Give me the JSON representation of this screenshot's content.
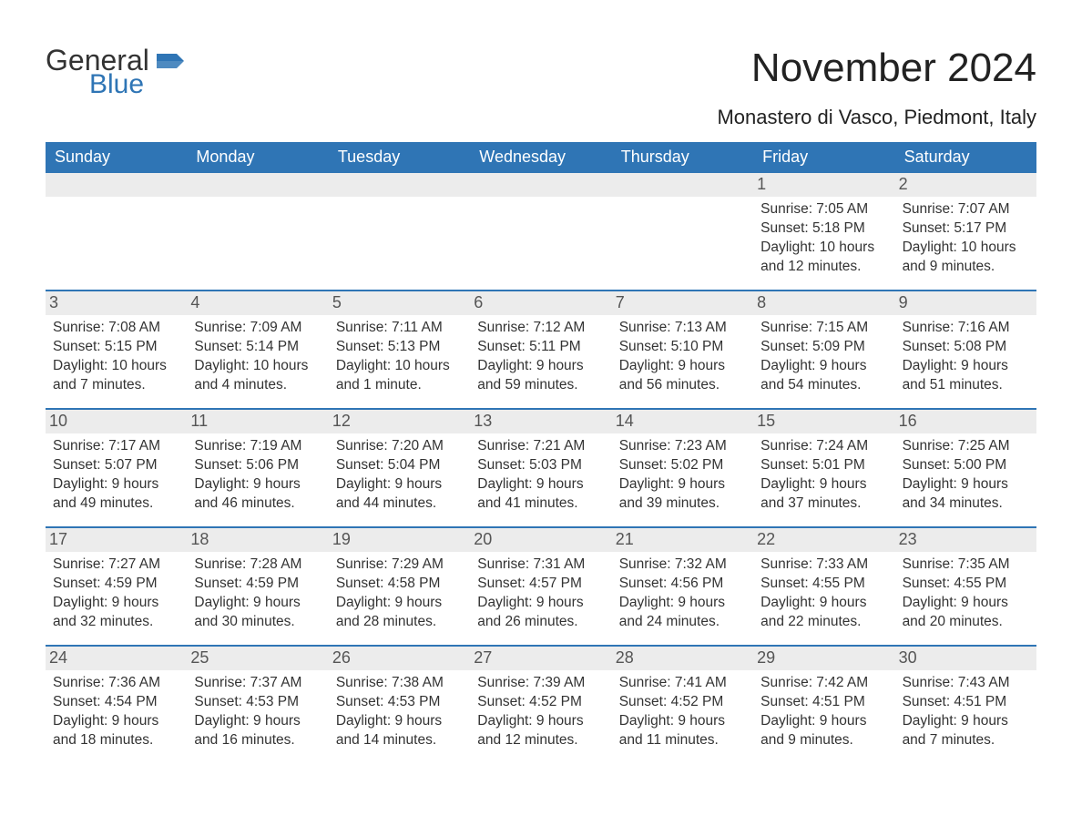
{
  "logo": {
    "line1": "General",
    "line2": "Blue",
    "accent_color": "#2f75b5"
  },
  "title": "November 2024",
  "location": "Monastero di Vasco, Piedmont, Italy",
  "colors": {
    "header_bg": "#2f75b5",
    "header_text": "#ffffff",
    "daynum_bg": "#ececec",
    "text": "#333333",
    "page_bg": "#ffffff"
  },
  "days_of_week": [
    "Sunday",
    "Monday",
    "Tuesday",
    "Wednesday",
    "Thursday",
    "Friday",
    "Saturday"
  ],
  "weeks": [
    [
      {
        "n": null
      },
      {
        "n": null
      },
      {
        "n": null
      },
      {
        "n": null
      },
      {
        "n": null
      },
      {
        "n": "1",
        "sunrise": "7:05 AM",
        "sunset": "5:18 PM",
        "daylight": "10 hours and 12 minutes."
      },
      {
        "n": "2",
        "sunrise": "7:07 AM",
        "sunset": "5:17 PM",
        "daylight": "10 hours and 9 minutes."
      }
    ],
    [
      {
        "n": "3",
        "sunrise": "7:08 AM",
        "sunset": "5:15 PM",
        "daylight": "10 hours and 7 minutes."
      },
      {
        "n": "4",
        "sunrise": "7:09 AM",
        "sunset": "5:14 PM",
        "daylight": "10 hours and 4 minutes."
      },
      {
        "n": "5",
        "sunrise": "7:11 AM",
        "sunset": "5:13 PM",
        "daylight": "10 hours and 1 minute."
      },
      {
        "n": "6",
        "sunrise": "7:12 AM",
        "sunset": "5:11 PM",
        "daylight": "9 hours and 59 minutes."
      },
      {
        "n": "7",
        "sunrise": "7:13 AM",
        "sunset": "5:10 PM",
        "daylight": "9 hours and 56 minutes."
      },
      {
        "n": "8",
        "sunrise": "7:15 AM",
        "sunset": "5:09 PM",
        "daylight": "9 hours and 54 minutes."
      },
      {
        "n": "9",
        "sunrise": "7:16 AM",
        "sunset": "5:08 PM",
        "daylight": "9 hours and 51 minutes."
      }
    ],
    [
      {
        "n": "10",
        "sunrise": "7:17 AM",
        "sunset": "5:07 PM",
        "daylight": "9 hours and 49 minutes."
      },
      {
        "n": "11",
        "sunrise": "7:19 AM",
        "sunset": "5:06 PM",
        "daylight": "9 hours and 46 minutes."
      },
      {
        "n": "12",
        "sunrise": "7:20 AM",
        "sunset": "5:04 PM",
        "daylight": "9 hours and 44 minutes."
      },
      {
        "n": "13",
        "sunrise": "7:21 AM",
        "sunset": "5:03 PM",
        "daylight": "9 hours and 41 minutes."
      },
      {
        "n": "14",
        "sunrise": "7:23 AM",
        "sunset": "5:02 PM",
        "daylight": "9 hours and 39 minutes."
      },
      {
        "n": "15",
        "sunrise": "7:24 AM",
        "sunset": "5:01 PM",
        "daylight": "9 hours and 37 minutes."
      },
      {
        "n": "16",
        "sunrise": "7:25 AM",
        "sunset": "5:00 PM",
        "daylight": "9 hours and 34 minutes."
      }
    ],
    [
      {
        "n": "17",
        "sunrise": "7:27 AM",
        "sunset": "4:59 PM",
        "daylight": "9 hours and 32 minutes."
      },
      {
        "n": "18",
        "sunrise": "7:28 AM",
        "sunset": "4:59 PM",
        "daylight": "9 hours and 30 minutes."
      },
      {
        "n": "19",
        "sunrise": "7:29 AM",
        "sunset": "4:58 PM",
        "daylight": "9 hours and 28 minutes."
      },
      {
        "n": "20",
        "sunrise": "7:31 AM",
        "sunset": "4:57 PM",
        "daylight": "9 hours and 26 minutes."
      },
      {
        "n": "21",
        "sunrise": "7:32 AM",
        "sunset": "4:56 PM",
        "daylight": "9 hours and 24 minutes."
      },
      {
        "n": "22",
        "sunrise": "7:33 AM",
        "sunset": "4:55 PM",
        "daylight": "9 hours and 22 minutes."
      },
      {
        "n": "23",
        "sunrise": "7:35 AM",
        "sunset": "4:55 PM",
        "daylight": "9 hours and 20 minutes."
      }
    ],
    [
      {
        "n": "24",
        "sunrise": "7:36 AM",
        "sunset": "4:54 PM",
        "daylight": "9 hours and 18 minutes."
      },
      {
        "n": "25",
        "sunrise": "7:37 AM",
        "sunset": "4:53 PM",
        "daylight": "9 hours and 16 minutes."
      },
      {
        "n": "26",
        "sunrise": "7:38 AM",
        "sunset": "4:53 PM",
        "daylight": "9 hours and 14 minutes."
      },
      {
        "n": "27",
        "sunrise": "7:39 AM",
        "sunset": "4:52 PM",
        "daylight": "9 hours and 12 minutes."
      },
      {
        "n": "28",
        "sunrise": "7:41 AM",
        "sunset": "4:52 PM",
        "daylight": "9 hours and 11 minutes."
      },
      {
        "n": "29",
        "sunrise": "7:42 AM",
        "sunset": "4:51 PM",
        "daylight": "9 hours and 9 minutes."
      },
      {
        "n": "30",
        "sunrise": "7:43 AM",
        "sunset": "4:51 PM",
        "daylight": "9 hours and 7 minutes."
      }
    ]
  ],
  "labels": {
    "sunrise": "Sunrise: ",
    "sunset": "Sunset: ",
    "daylight": "Daylight: "
  }
}
